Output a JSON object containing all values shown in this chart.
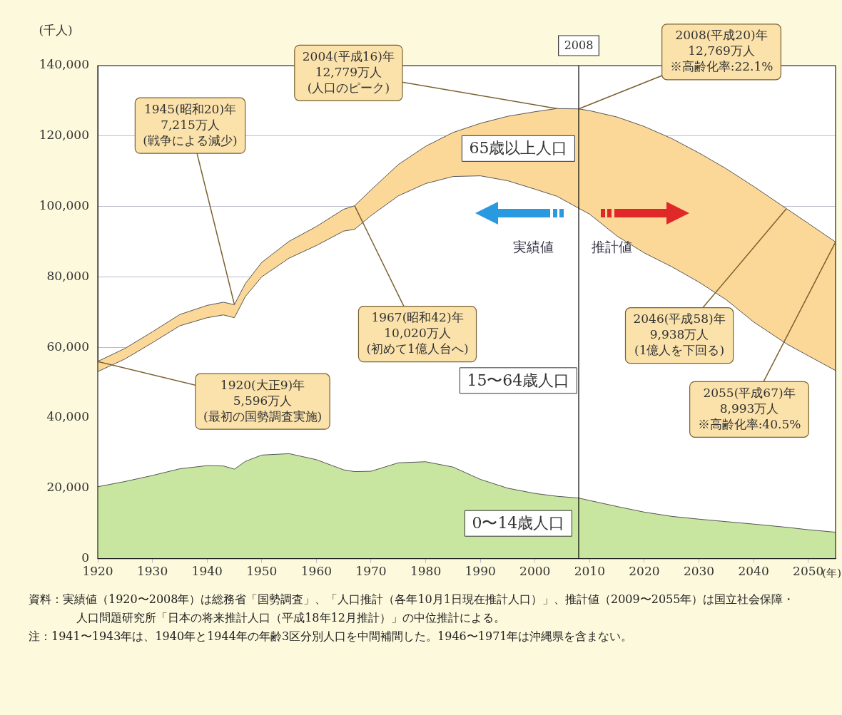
{
  "chart_data": {
    "type": "area",
    "stacked": true,
    "x": [
      1920,
      1925,
      1930,
      1935,
      1940,
      1943,
      1945,
      1947,
      1950,
      1955,
      1960,
      1965,
      1967,
      1970,
      1975,
      1980,
      1985,
      1990,
      1995,
      2000,
      2004,
      2008,
      2010,
      2015,
      2020,
      2025,
      2030,
      2035,
      2040,
      2046,
      2050,
      2055
    ],
    "series": [
      {
        "name": "0〜14歳人口",
        "color": "#c8e6a0",
        "values": [
          20400,
          21900,
          23600,
          25500,
          26400,
          26300,
          25400,
          27600,
          29400,
          29800,
          28100,
          25200,
          24700,
          24800,
          27200,
          27500,
          26000,
          22500,
          20000,
          18500,
          17700,
          17200,
          16500,
          14800,
          13200,
          12000,
          11200,
          10500,
          9800,
          8900,
          8200,
          7500
        ]
      },
      {
        "name": "15〜64歳人口",
        "color": "#ffffff",
        "values": [
          32700,
          34800,
          37700,
          40600,
          42000,
          42900,
          43000,
          46800,
          50600,
          55500,
          60800,
          67800,
          68800,
          72600,
          75800,
          79000,
          82500,
          86200,
          87300,
          86400,
          85200,
          82300,
          81300,
          76800,
          73600,
          70900,
          67300,
          63000,
          57400,
          52100,
          49400,
          45900
        ]
      },
      {
        "name": "65歳以上人口",
        "color": "#fcd898",
        "values": [
          2900,
          3000,
          3100,
          3200,
          3500,
          3600,
          3700,
          3700,
          4100,
          4800,
          5400,
          6200,
          6700,
          7300,
          8900,
          10600,
          12500,
          14900,
          18300,
          22000,
          24900,
          28200,
          29400,
          33800,
          35900,
          36400,
          36700,
          37200,
          38500,
          38400,
          37600,
          36500
        ]
      }
    ],
    "xlim": [
      1920,
      2055
    ],
    "xticks": [
      1920,
      1930,
      1940,
      1950,
      1960,
      1970,
      1980,
      1990,
      2000,
      2010,
      2020,
      2030,
      2040,
      2050
    ],
    "ylim": [
      0,
      140000
    ],
    "yticks": [
      {
        "value": 0,
        "label": "0"
      },
      {
        "value": 20000,
        "label": "20,000"
      },
      {
        "value": 40000,
        "label": "40,000"
      },
      {
        "value": 60000,
        "label": "60,000"
      },
      {
        "value": 80000,
        "label": "80,000"
      },
      {
        "value": 100000,
        "label": "100,000"
      },
      {
        "value": 120000,
        "label": "120,000"
      },
      {
        "value": 140000,
        "label": "140,000"
      }
    ],
    "xlabel": "(年)",
    "ylabel": "(千人)",
    "grid": "y",
    "legend": false,
    "ref_lines": [
      {
        "axis": "x",
        "value": 2008,
        "label": "2008",
        "color": "#000000"
      }
    ],
    "annotations": [
      {
        "text": "1920(大正9)年\n5,596万人\n(最初の国勢調査実施)",
        "x": 1920,
        "y": 55960
      },
      {
        "text": "1945(昭和20)年\n7,215万人\n(戦争による減少)",
        "x": 1945,
        "y": 72150
      },
      {
        "text": "1967(昭和42)年\n10,020万人\n(初めて1億人台へ)",
        "x": 1967,
        "y": 100200
      },
      {
        "text": "2004(平成16)年\n12,779万人\n(人口のピーク)",
        "x": 2004,
        "y": 127790
      },
      {
        "text": "2008(平成20)年\n12,769万人\n※高齢化率:22.1%",
        "x": 2008,
        "y": 127690
      },
      {
        "text": "2046(平成58)年\n9,938万人\n(1億人を下回る)",
        "x": 2046,
        "y": 99380
      },
      {
        "text": "2055(平成67)年\n8,993万人\n※高齢化率:40.5%",
        "x": 2055,
        "y": 89930
      },
      "実績値",
      "推計値",
      "資料：実績値（1920〜2008年）は総務省「国勢調査」、「人口推計（各年10月1日現在推計人口）」、推計値（2009〜2055年）は国立社会保障・人口問題研究所「日本の将来推計人口（平成18年12月推計）」の中位推計による。",
      "注：1941〜1943年は、1940年と1944年の年齢3区分別人口を中間補間した。1946〜1971年は沖縄県を含まない。"
    ]
  }
}
